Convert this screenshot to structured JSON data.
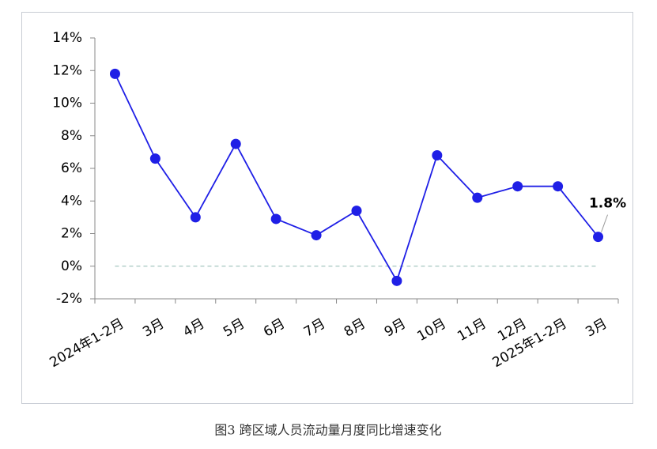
{
  "chart_data": {
    "type": "line",
    "caption": "图3 跨区域人员流动量月度同比增速变化",
    "categories": [
      "2024年1-2月",
      "3月",
      "4月",
      "5月",
      "6月",
      "7月",
      "8月",
      "9月",
      "10月",
      "11月",
      "12月",
      "2025年1-2月",
      "3月"
    ],
    "series": [
      {
        "color": "#1f1fe6",
        "values": [
          11.8,
          6.6,
          3.0,
          7.5,
          2.9,
          1.9,
          3.4,
          -0.9,
          6.8,
          4.2,
          4.9,
          4.9,
          1.8
        ],
        "value_labels": [
          null,
          null,
          null,
          null,
          null,
          null,
          null,
          null,
          null,
          null,
          null,
          null,
          "1.8%"
        ]
      }
    ],
    "ylim": [
      -2,
      14
    ],
    "yticks": [
      {
        "value": -2,
        "label": "-2%"
      },
      {
        "value": 0,
        "label": "0%"
      },
      {
        "value": 2,
        "label": "2%"
      },
      {
        "value": 4,
        "label": "4%"
      },
      {
        "value": 6,
        "label": "6%"
      },
      {
        "value": 8,
        "label": "8%"
      },
      {
        "value": 10,
        "label": "10%"
      },
      {
        "value": 12,
        "label": "12%"
      },
      {
        "value": 14,
        "label": "14%"
      }
    ],
    "zero_line": true
  }
}
